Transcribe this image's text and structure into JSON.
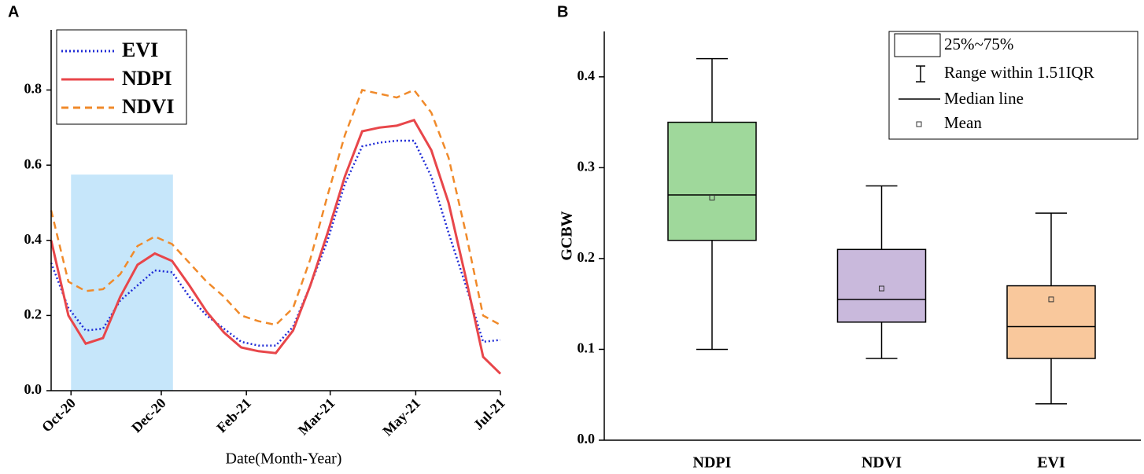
{
  "chart_data": [
    {
      "type": "line",
      "panel_label": "A",
      "x_label": "Date(Month-Year)",
      "x": [
        0,
        2,
        4,
        6,
        8,
        10,
        12,
        14,
        16,
        18,
        20,
        22,
        24,
        26,
        28,
        30,
        32,
        34,
        36,
        38,
        40,
        42,
        44,
        46,
        48,
        50,
        52
      ],
      "series": [
        {
          "name": "EVI",
          "color": "#1f2bd6",
          "style": "dotted",
          "values": [
            0.34,
            0.22,
            0.16,
            0.165,
            0.24,
            0.28,
            0.32,
            0.315,
            0.25,
            0.2,
            0.165,
            0.13,
            0.12,
            0.12,
            0.17,
            0.28,
            0.4,
            0.55,
            0.65,
            0.66,
            0.665,
            0.665,
            0.57,
            0.42,
            0.28,
            0.13,
            0.135
          ]
        },
        {
          "name": "NDPI",
          "color": "#e8464a",
          "style": "solid",
          "values": [
            0.4,
            0.2,
            0.125,
            0.14,
            0.25,
            0.335,
            0.365,
            0.345,
            0.28,
            0.21,
            0.155,
            0.115,
            0.105,
            0.1,
            0.16,
            0.28,
            0.42,
            0.57,
            0.69,
            0.7,
            0.705,
            0.72,
            0.64,
            0.5,
            0.3,
            0.09,
            0.045
          ]
        },
        {
          "name": "NDVI",
          "color": "#f08a2a",
          "style": "dashed",
          "values": [
            0.48,
            0.29,
            0.265,
            0.27,
            0.31,
            0.385,
            0.41,
            0.39,
            0.34,
            0.29,
            0.25,
            0.2,
            0.185,
            0.175,
            0.22,
            0.35,
            0.52,
            0.68,
            0.8,
            0.79,
            0.78,
            0.8,
            0.74,
            0.62,
            0.42,
            0.2,
            0.175
          ]
        }
      ],
      "highlight": {
        "x": [
          2.3,
          14.1
        ],
        "y": [
          0,
          0.575
        ],
        "color": "#c6e6fa"
      },
      "xlim": [
        0,
        52
      ],
      "xticks": [
        {
          "value": 2.3,
          "label": "Oct-20"
        },
        {
          "value": 12.75,
          "label": "Dec-20"
        },
        {
          "value": 22.6,
          "label": "Feb-21"
        },
        {
          "value": 32.3,
          "label": "Mar-21"
        },
        {
          "value": 42.2,
          "label": "May-21"
        },
        {
          "value": 52,
          "label": "Jul-21"
        }
      ],
      "ylim": [
        0,
        0.96
      ],
      "yticks": [
        {
          "value": 0,
          "label": "0.0"
        },
        0.2,
        0.4,
        0.6,
        0.8
      ],
      "legend": "upper left"
    },
    {
      "type": "box",
      "panel_label": "B",
      "y_label": "GCBW",
      "categories": [
        "NDPI",
        "NDVI",
        "EVI"
      ],
      "boxes": [
        {
          "min": 0.1,
          "q1": 0.22,
          "median": 0.27,
          "q3": 0.35,
          "max": 0.42,
          "mean": 0.267,
          "color": "#9fd89b"
        },
        {
          "min": 0.09,
          "q1": 0.13,
          "median": 0.155,
          "q3": 0.21,
          "max": 0.28,
          "mean": 0.167,
          "color": "#c9b9dc"
        },
        {
          "min": 0.04,
          "q1": 0.09,
          "median": 0.125,
          "q3": 0.17,
          "max": 0.25,
          "mean": 0.155,
          "color": "#f9c89c"
        }
      ],
      "legend_labels": [
        "25%~75%",
        "Range within 1.51IQR",
        "Median line",
        "Mean"
      ],
      "ylim": [
        0,
        0.45
      ],
      "yticks": [
        {
          "value": 0,
          "label": "0.0"
        },
        0.1,
        0.2,
        0.3,
        0.4
      ],
      "legend": "upper right"
    }
  ]
}
